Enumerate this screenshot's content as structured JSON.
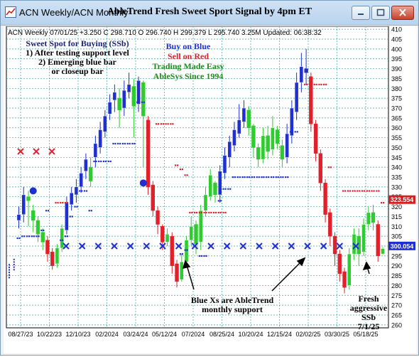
{
  "window": {
    "title": "ACN  Weekly/ACN  Monthly",
    "heading": "AbleTrend Fresh Sweet Sport Signal by 4pm ET"
  },
  "chart_data": {
    "type": "candlestick",
    "info_line": "ACN  Weekly 07/01/25 +3.250 C 298.710 O 296.740 H 299.379 L 295.740 3.25M Updated: 06:38:32",
    "y_ticks": [
      260,
      265,
      270,
      275,
      280,
      285,
      290,
      295,
      300,
      305,
      310,
      315,
      320,
      325,
      330,
      335,
      340,
      345,
      350,
      355,
      360,
      365,
      370,
      375,
      380,
      385,
      390,
      395,
      400,
      405,
      410
    ],
    "ylim": [
      258.5,
      411.5
    ],
    "x_tick_labels": [
      "08/27/23",
      "10/22/23",
      "12/10/23",
      "02/2024",
      "03/24/24",
      "05/12/24",
      "07/2024",
      "08/25/24",
      "10/20/24",
      "12/15/24",
      "02/02/25",
      "03/30/25",
      "05/18/25"
    ],
    "price_tags": [
      {
        "value": 323.554,
        "label": "323.554",
        "color": "#d42020"
      },
      {
        "value": 300.054,
        "label": "300.054",
        "color": "#1f2fd0"
      }
    ],
    "monthly_support_x_count": 19,
    "monthly_support_level": 300,
    "red_x_level": 348,
    "red_x_count": 3,
    "annotations": {
      "sweet_spot": [
        "Sweet Spot for Buying (SSb)",
        "1) After testing support level",
        "2) Emerging blue bar",
        "or closeup bar"
      ],
      "buy_on_blue": "Buy on Blue",
      "sell_on_red": "Sell on Red",
      "trading_made_easy": "Trading Made Easy",
      "ablesys": "AbleSys Since 1994",
      "blue_xs": [
        "Blue Xs are AbleTrend",
        "monthly support"
      ],
      "fresh_ssb": [
        "Fresh",
        "aggressive",
        "SSb",
        "7/1/25"
      ]
    },
    "colors": {
      "blue": "#1f2fd0",
      "red": "#e0202a",
      "green": "#2ecc2e",
      "grid": "#3aa0a0",
      "navy": "#1a237e",
      "darkgreen": "#1e8a1e"
    },
    "candles": [
      {
        "o": 287,
        "c": 288,
        "h": 291,
        "l": 284,
        "k": "dots"
      },
      {
        "o": 290,
        "c": 291,
        "h": 294,
        "l": 288,
        "k": "dots"
      },
      {
        "o": 313,
        "c": 316,
        "h": 320,
        "l": 309,
        "k": "b"
      },
      {
        "o": 316,
        "c": 326,
        "h": 330,
        "l": 312,
        "k": "b"
      },
      {
        "o": 325,
        "c": 323,
        "h": 328,
        "l": 310,
        "k": "g"
      },
      {
        "o": 318,
        "c": 313,
        "h": 321,
        "l": 307,
        "k": "g"
      },
      {
        "o": 313,
        "c": 306,
        "h": 315,
        "l": 302,
        "k": "g"
      },
      {
        "o": 307,
        "c": 302,
        "h": 309,
        "l": 298,
        "k": "g"
      },
      {
        "o": 303,
        "c": 296,
        "h": 305,
        "l": 292,
        "k": "r"
      },
      {
        "o": 297,
        "c": 290,
        "h": 299,
        "l": 288,
        "k": "r"
      },
      {
        "o": 291,
        "c": 299,
        "h": 301,
        "l": 289,
        "k": "g"
      },
      {
        "o": 299,
        "c": 309,
        "h": 311,
        "l": 297,
        "k": "g"
      },
      {
        "o": 308,
        "c": 322,
        "h": 325,
        "l": 306,
        "k": "b"
      },
      {
        "o": 321,
        "c": 327,
        "h": 330,
        "l": 318,
        "k": "b"
      },
      {
        "o": 326,
        "c": 330,
        "h": 334,
        "l": 322,
        "k": "b"
      },
      {
        "o": 330,
        "c": 337,
        "h": 340,
        "l": 327,
        "k": "b"
      },
      {
        "o": 338,
        "c": 344,
        "h": 347,
        "l": 334,
        "k": "b"
      },
      {
        "o": 340,
        "c": 333,
        "h": 345,
        "l": 330,
        "k": "g"
      },
      {
        "o": 345,
        "c": 352,
        "h": 356,
        "l": 340,
        "k": "b"
      },
      {
        "o": 350,
        "c": 359,
        "h": 363,
        "l": 347,
        "k": "b"
      },
      {
        "o": 358,
        "c": 366,
        "h": 369,
        "l": 355,
        "k": "b"
      },
      {
        "o": 367,
        "c": 373,
        "h": 377,
        "l": 364,
        "k": "b"
      },
      {
        "o": 374,
        "c": 378,
        "h": 382,
        "l": 368,
        "k": "b"
      },
      {
        "o": 375,
        "c": 369,
        "h": 380,
        "l": 360,
        "k": "g"
      },
      {
        "o": 370,
        "c": 379,
        "h": 384,
        "l": 366,
        "k": "b"
      },
      {
        "o": 378,
        "c": 382,
        "h": 388,
        "l": 375,
        "k": "b"
      },
      {
        "o": 381,
        "c": 371,
        "h": 385,
        "l": 355,
        "k": "g"
      },
      {
        "o": 372,
        "c": 384,
        "h": 386,
        "l": 368,
        "k": "b"
      },
      {
        "o": 383,
        "c": 366,
        "h": 384,
        "l": 340,
        "k": "g"
      },
      {
        "o": 364,
        "c": 330,
        "h": 366,
        "l": 326,
        "k": "r"
      },
      {
        "o": 331,
        "c": 318,
        "h": 333,
        "l": 315,
        "k": "r"
      },
      {
        "o": 318,
        "c": 311,
        "h": 320,
        "l": 306,
        "k": "r"
      },
      {
        "o": 310,
        "c": 302,
        "h": 311,
        "l": 298,
        "k": "r"
      },
      {
        "o": 302,
        "c": 306,
        "h": 309,
        "l": 300,
        "k": "g"
      },
      {
        "o": 305,
        "c": 290,
        "h": 307,
        "l": 286,
        "k": "r"
      },
      {
        "o": 291,
        "c": 282,
        "h": 293,
        "l": 279,
        "k": "r"
      },
      {
        "o": 283,
        "c": 292,
        "h": 296,
        "l": 282,
        "k": "g"
      },
      {
        "o": 292,
        "c": 303,
        "h": 305,
        "l": 289,
        "k": "g"
      },
      {
        "o": 303,
        "c": 310,
        "h": 315,
        "l": 300,
        "k": "g"
      },
      {
        "o": 311,
        "c": 301,
        "h": 313,
        "l": 296,
        "k": "g"
      },
      {
        "o": 302,
        "c": 318,
        "h": 321,
        "l": 298,
        "k": "g"
      },
      {
        "o": 318,
        "c": 326,
        "h": 330,
        "l": 315,
        "k": "g"
      },
      {
        "o": 325,
        "c": 336,
        "h": 339,
        "l": 323,
        "k": "g"
      },
      {
        "o": 332,
        "c": 326,
        "h": 333,
        "l": 322,
        "k": "g"
      },
      {
        "o": 326,
        "c": 338,
        "h": 341,
        "l": 322,
        "k": "b"
      },
      {
        "o": 337,
        "c": 346,
        "h": 350,
        "l": 334,
        "k": "b"
      },
      {
        "o": 345,
        "c": 353,
        "h": 356,
        "l": 340,
        "k": "b"
      },
      {
        "o": 351,
        "c": 359,
        "h": 363,
        "l": 348,
        "k": "b"
      },
      {
        "o": 357,
        "c": 364,
        "h": 372,
        "l": 355,
        "k": "b"
      },
      {
        "o": 363,
        "c": 370,
        "h": 374,
        "l": 360,
        "k": "b"
      },
      {
        "o": 369,
        "c": 360,
        "h": 371,
        "l": 356,
        "k": "g"
      },
      {
        "o": 361,
        "c": 350,
        "h": 362,
        "l": 345,
        "k": "g"
      },
      {
        "o": 350,
        "c": 344,
        "h": 352,
        "l": 340,
        "k": "g"
      },
      {
        "o": 344,
        "c": 356,
        "h": 360,
        "l": 342,
        "k": "g"
      },
      {
        "o": 356,
        "c": 348,
        "h": 361,
        "l": 344,
        "k": "g"
      },
      {
        "o": 349,
        "c": 360,
        "h": 366,
        "l": 346,
        "k": "g"
      },
      {
        "o": 359,
        "c": 352,
        "h": 361,
        "l": 349,
        "k": "g"
      },
      {
        "o": 351,
        "c": 344,
        "h": 354,
        "l": 340,
        "k": "g"
      },
      {
        "o": 345,
        "c": 357,
        "h": 362,
        "l": 342,
        "k": "b"
      },
      {
        "o": 356,
        "c": 370,
        "h": 374,
        "l": 352,
        "k": "b"
      },
      {
        "o": 368,
        "c": 383,
        "h": 388,
        "l": 364,
        "k": "b"
      },
      {
        "o": 383,
        "c": 391,
        "h": 398,
        "l": 378,
        "k": "b"
      },
      {
        "o": 390,
        "c": 388,
        "h": 400,
        "l": 382,
        "k": "b"
      },
      {
        "o": 386,
        "c": 362,
        "h": 388,
        "l": 358,
        "k": "r"
      },
      {
        "o": 362,
        "c": 347,
        "h": 364,
        "l": 343,
        "k": "r"
      },
      {
        "o": 347,
        "c": 332,
        "h": 349,
        "l": 328,
        "k": "r"
      },
      {
        "o": 332,
        "c": 316,
        "h": 334,
        "l": 312,
        "k": "r"
      },
      {
        "o": 317,
        "c": 305,
        "h": 319,
        "l": 300,
        "k": "r"
      },
      {
        "o": 305,
        "c": 296,
        "h": 307,
        "l": 290,
        "k": "r"
      },
      {
        "o": 296,
        "c": 286,
        "h": 298,
        "l": 282,
        "k": "r"
      },
      {
        "o": 287,
        "c": 279,
        "h": 289,
        "l": 276,
        "k": "r"
      },
      {
        "o": 280,
        "c": 296,
        "h": 299,
        "l": 278,
        "k": "g"
      },
      {
        "o": 296,
        "c": 306,
        "h": 309,
        "l": 293,
        "k": "g"
      },
      {
        "o": 305,
        "c": 296,
        "h": 309,
        "l": 290,
        "k": "g"
      },
      {
        "o": 297,
        "c": 311,
        "h": 314,
        "l": 295,
        "k": "g"
      },
      {
        "o": 311,
        "c": 317,
        "h": 320,
        "l": 308,
        "k": "g"
      },
      {
        "o": 317,
        "c": 312,
        "h": 321,
        "l": 308,
        "k": "g"
      },
      {
        "o": 311,
        "c": 295,
        "h": 313,
        "l": 292,
        "k": "r"
      },
      {
        "o": 296,
        "c": 298.7,
        "h": 299.4,
        "l": 295.7,
        "k": "g"
      }
    ],
    "blue_dots": [
      {
        "i": 2,
        "v": 304
      },
      {
        "i": 3,
        "v": 305
      },
      {
        "i": 4,
        "v": 305
      },
      {
        "i": 5,
        "v": 305
      },
      {
        "i": 6,
        "v": 305
      },
      {
        "i": 7,
        "v": 308
      },
      {
        "i": 8,
        "v": 318
      },
      {
        "i": 11,
        "v": 303
      },
      {
        "i": 12,
        "v": 305
      },
      {
        "i": 13,
        "v": 315
      },
      {
        "i": 14,
        "v": 320
      },
      {
        "i": 15,
        "v": 328
      },
      {
        "i": 16,
        "v": 328
      },
      {
        "i": 17,
        "v": 318
      },
      {
        "i": 18,
        "v": 343
      },
      {
        "i": 19,
        "v": 343
      },
      {
        "i": 20,
        "v": 343
      },
      {
        "i": 21,
        "v": 343
      },
      {
        "i": 22,
        "v": 352
      },
      {
        "i": 23,
        "v": 352
      },
      {
        "i": 24,
        "v": 352
      },
      {
        "i": 25,
        "v": 352
      },
      {
        "i": 26,
        "v": 352
      },
      {
        "i": 27,
        "v": 373
      },
      {
        "i": 28,
        "v": 373
      },
      {
        "i": 36,
        "v": 296
      },
      {
        "i": 37,
        "v": 298
      },
      {
        "i": 40,
        "v": 295
      },
      {
        "i": 41,
        "v": 295
      },
      {
        "i": 44,
        "v": 323
      },
      {
        "i": 45,
        "v": 329
      },
      {
        "i": 46,
        "v": 329
      },
      {
        "i": 47,
        "v": 335
      },
      {
        "i": 48,
        "v": 335
      },
      {
        "i": 49,
        "v": 335
      },
      {
        "i": 50,
        "v": 335
      },
      {
        "i": 51,
        "v": 335
      },
      {
        "i": 52,
        "v": 335
      },
      {
        "i": 53,
        "v": 335
      },
      {
        "i": 54,
        "v": 335
      },
      {
        "i": 55,
        "v": 335
      },
      {
        "i": 56,
        "v": 335
      },
      {
        "i": 57,
        "v": 335
      },
      {
        "i": 58,
        "v": 335
      },
      {
        "i": 59,
        "v": 358
      },
      {
        "i": 60,
        "v": 358
      }
    ],
    "red_dots": [
      {
        "i": 10,
        "v": 322
      },
      {
        "i": 11,
        "v": 322
      },
      {
        "i": 12,
        "v": 322
      },
      {
        "i": 31,
        "v": 362
      },
      {
        "i": 32,
        "v": 362
      },
      {
        "i": 33,
        "v": 362
      },
      {
        "i": 34,
        "v": 362
      },
      {
        "i": 35,
        "v": 341
      },
      {
        "i": 36,
        "v": 339
      },
      {
        "i": 37,
        "v": 336
      },
      {
        "i": 38,
        "v": 317
      },
      {
        "i": 39,
        "v": 317
      },
      {
        "i": 40,
        "v": 317
      },
      {
        "i": 41,
        "v": 317
      },
      {
        "i": 42,
        "v": 317
      },
      {
        "i": 43,
        "v": 317
      },
      {
        "i": 44,
        "v": 317
      },
      {
        "i": 45,
        "v": 317
      },
      {
        "i": 62,
        "v": 382
      },
      {
        "i": 63,
        "v": 382
      },
      {
        "i": 64,
        "v": 382
      },
      {
        "i": 65,
        "v": 382
      },
      {
        "i": 66,
        "v": 382
      },
      {
        "i": 67,
        "v": 340
      },
      {
        "i": 70,
        "v": 328
      },
      {
        "i": 71,
        "v": 328
      },
      {
        "i": 72,
        "v": 328
      },
      {
        "i": 73,
        "v": 328
      },
      {
        "i": 74,
        "v": 328
      },
      {
        "i": 75,
        "v": 328
      },
      {
        "i": 76,
        "v": 328
      },
      {
        "i": 77,
        "v": 328
      },
      {
        "i": 78,
        "v": 322
      }
    ],
    "blue_circles": [
      {
        "i": 5,
        "v": 328
      },
      {
        "i": 28,
        "v": 332
      }
    ]
  }
}
